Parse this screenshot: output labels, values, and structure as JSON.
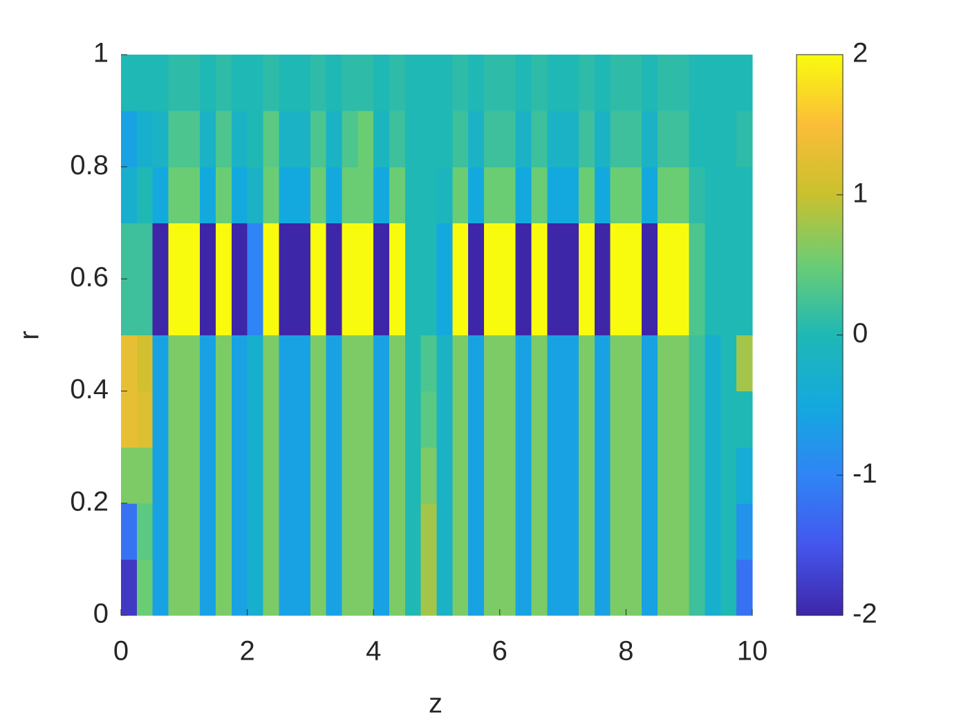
{
  "chart_data": {
    "type": "heatmap",
    "xlabel": "z",
    "ylabel": "r",
    "x": [
      0.125,
      0.375,
      0.625,
      0.875,
      1.125,
      1.375,
      1.625,
      1.875,
      2.125,
      2.375,
      2.625,
      2.875,
      3.125,
      3.375,
      3.625,
      3.875,
      4.125,
      4.375,
      4.625,
      4.875,
      5.125,
      5.375,
      5.625,
      5.875,
      6.125,
      6.375,
      6.625,
      6.875,
      7.125,
      7.375,
      7.625,
      7.875,
      8.125,
      8.375,
      8.625,
      8.875,
      9.125,
      9.375,
      9.625,
      9.875
    ],
    "y": [
      0.05,
      0.15,
      0.25,
      0.35,
      0.45,
      0.55,
      0.65,
      0.75,
      0.85,
      0.95
    ],
    "z": [
      [
        -1.8,
        0.5,
        -0.6,
        0.6,
        0.6,
        -0.6,
        0.6,
        -0.6,
        -0.3,
        0.6,
        -0.6,
        -0.6,
        0.6,
        -0.6,
        0.6,
        0.6,
        -0.6,
        0.6,
        0,
        0.8,
        -0.2,
        0.6,
        -0.6,
        0.6,
        0.6,
        -0.6,
        0.6,
        -0.6,
        -0.6,
        0.6,
        -0.6,
        0.6,
        0.6,
        -0.6,
        0.6,
        0.6,
        0.2,
        -0.3,
        0,
        -1.2
      ],
      [
        -1.2,
        0.4,
        -0.6,
        0.6,
        0.6,
        -0.6,
        0.6,
        -0.6,
        -0.3,
        0.6,
        -0.6,
        -0.6,
        0.6,
        -0.6,
        0.6,
        0.6,
        -0.6,
        0.6,
        0,
        0.8,
        -0.2,
        0.6,
        -0.6,
        0.6,
        0.6,
        -0.6,
        0.6,
        -0.6,
        -0.6,
        0.6,
        -0.6,
        0.6,
        0.6,
        -0.6,
        0.6,
        0.6,
        0.2,
        -0.3,
        0,
        -0.8
      ],
      [
        0.6,
        0.6,
        -0.6,
        0.6,
        0.6,
        -0.6,
        0.6,
        -0.6,
        -0.3,
        0.6,
        -0.6,
        -0.6,
        0.6,
        -0.6,
        0.6,
        0.6,
        -0.6,
        0.6,
        0,
        0.6,
        -0.2,
        0.6,
        -0.6,
        0.6,
        0.6,
        -0.6,
        0.6,
        -0.6,
        -0.6,
        0.6,
        -0.6,
        0.6,
        0.6,
        -0.6,
        0.6,
        0.6,
        0.2,
        -0.3,
        0,
        -0.4
      ],
      [
        1.3,
        1.2,
        -0.6,
        0.6,
        0.6,
        -0.6,
        0.6,
        -0.6,
        -0.3,
        0.6,
        -0.6,
        -0.6,
        0.6,
        -0.6,
        0.6,
        0.6,
        -0.6,
        0.6,
        0,
        0.4,
        -0.2,
        0.6,
        -0.6,
        0.6,
        0.6,
        -0.6,
        0.6,
        -0.6,
        -0.6,
        0.6,
        -0.6,
        0.6,
        0.6,
        -0.6,
        0.6,
        0.6,
        0.2,
        -0.3,
        0,
        0
      ],
      [
        1.3,
        1.1,
        -0.6,
        0.6,
        0.6,
        -0.6,
        0.6,
        -0.6,
        -0.3,
        0.6,
        -0.6,
        -0.6,
        0.6,
        -0.6,
        0.6,
        0.6,
        -0.6,
        0.6,
        0,
        0.3,
        -0.2,
        0.6,
        -0.6,
        0.6,
        0.6,
        -0.6,
        0.6,
        -0.6,
        -0.6,
        0.6,
        -0.6,
        0.6,
        0.6,
        -0.6,
        0.6,
        0.6,
        0.2,
        -0.3,
        0,
        0.8
      ],
      [
        0.2,
        0.2,
        -2,
        2,
        2,
        -2,
        2,
        -2,
        -1,
        2,
        -2,
        -2,
        2,
        -2,
        2,
        2,
        -2,
        2,
        0,
        0,
        -0.5,
        2,
        -2,
        2,
        2,
        -2,
        2,
        -2,
        -2,
        2,
        -2,
        2,
        2,
        -2,
        2,
        2,
        0.3,
        0,
        0,
        0
      ],
      [
        0.2,
        0.2,
        -2,
        2,
        2,
        -2,
        2,
        -2,
        -1,
        2,
        -2,
        -2,
        2,
        -2,
        2,
        2,
        -2,
        2,
        0,
        0,
        -0.5,
        2,
        -2,
        2,
        2,
        -2,
        2,
        -2,
        -2,
        2,
        -2,
        2,
        2,
        -2,
        2,
        2,
        0.3,
        0,
        0,
        0
      ],
      [
        -0.3,
        0,
        -0.5,
        0.5,
        0.5,
        -0.5,
        0.5,
        -0.5,
        -0.2,
        0.5,
        -0.5,
        -0.5,
        0.5,
        -0.5,
        0.5,
        0.5,
        -0.5,
        0.5,
        0,
        0,
        -0.1,
        0.5,
        -0.5,
        0.5,
        0.5,
        -0.5,
        0.5,
        -0.5,
        -0.5,
        0.5,
        -0.5,
        0.5,
        0.5,
        -0.5,
        0.5,
        0.5,
        0.1,
        0,
        0,
        0
      ],
      [
        -0.6,
        -0.3,
        -0.2,
        0.3,
        0.3,
        -0.2,
        0.3,
        -0.2,
        0,
        0.4,
        -0.2,
        -0.2,
        0.3,
        -0.2,
        0.3,
        0.5,
        -0.1,
        0.2,
        0,
        0,
        0,
        0.2,
        -0.2,
        0.2,
        0.2,
        -0.2,
        0.2,
        -0.2,
        -0.2,
        0.2,
        -0.2,
        0.2,
        0.2,
        -0.2,
        0.2,
        0.2,
        0,
        0,
        0,
        0.1
      ],
      [
        0,
        0,
        0,
        0.1,
        0.1,
        0,
        0.1,
        0,
        0,
        0.1,
        0,
        0,
        0.1,
        0,
        0.1,
        0.1,
        0,
        0.1,
        0,
        0,
        0,
        0.1,
        0,
        0.1,
        0.1,
        0,
        0.1,
        0,
        0,
        0.1,
        0,
        0.1,
        0.1,
        0,
        0.1,
        0.1,
        0,
        0,
        0,
        0
      ]
    ],
    "xlim": [
      0,
      10
    ],
    "ylim": [
      0,
      1
    ],
    "xticks": [
      0,
      2,
      4,
      6,
      8,
      10
    ],
    "yticks": [
      0,
      0.2,
      0.4,
      0.6,
      0.8,
      1
    ],
    "clim": [
      -2,
      2
    ],
    "cticks": [
      -2,
      -1,
      0,
      1,
      2
    ],
    "colormap": [
      "#3e26a8",
      "#4456ee",
      "#2f85f5",
      "#14a9de",
      "#1fb8b5",
      "#6acd74",
      "#c9c12e",
      "#fbbd38",
      "#f9fb0e"
    ],
    "colorbar": true
  }
}
